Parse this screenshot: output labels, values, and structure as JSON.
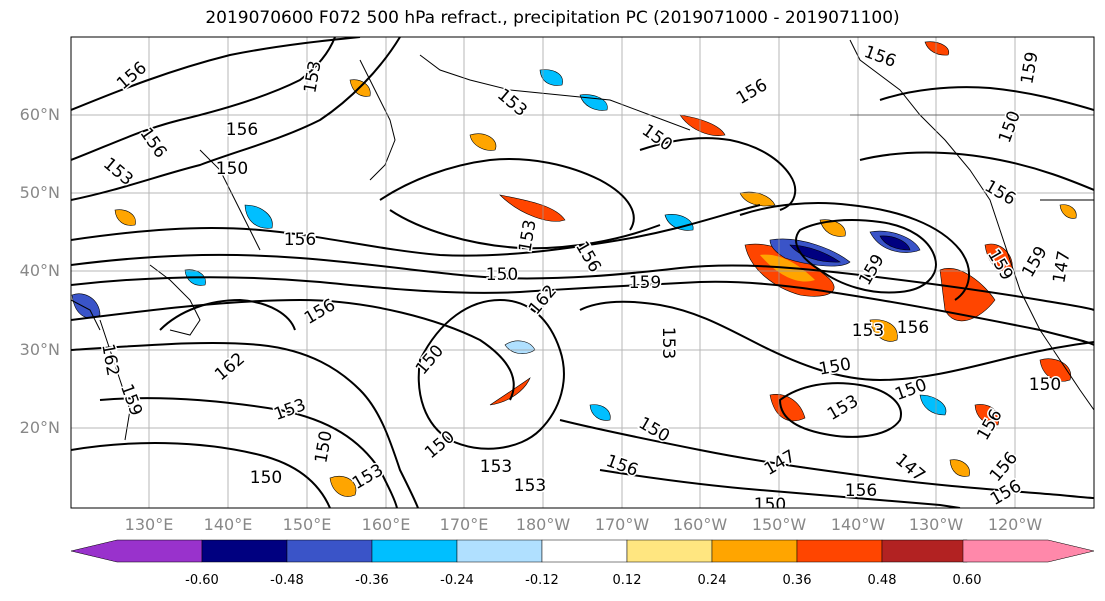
{
  "title": "2019070600 F072 500 hPa refract., precipitation PC (2019071000 - 2019071100)",
  "lat_labels": [
    "60°N",
    "50°N",
    "40°N",
    "30°N",
    "20°N"
  ],
  "lon_labels": [
    "130°E",
    "140°E",
    "150°E",
    "160°E",
    "170°E",
    "180°W",
    "170°W",
    "160°W",
    "150°W",
    "140°W",
    "130°W",
    "120°W"
  ],
  "colorbar": {
    "colors": [
      "#9932cc",
      "#000080",
      "#3a54c8",
      "#00bfff",
      "#b0e0ff",
      "#ffffff",
      "#ffe680",
      "#ffa500",
      "#ff4500",
      "#b22222",
      "#ff88aa"
    ],
    "tick_labels": [
      "-0.60",
      "-0.48",
      "-0.36",
      "-0.24",
      "-0.12",
      "0.12",
      "0.24",
      "0.36",
      "0.48",
      "0.60"
    ]
  },
  "contour_labels": [
    "156",
    "153",
    "156",
    "156",
    "153",
    "150",
    "153",
    "156",
    "150",
    "150",
    "156",
    "159",
    "156",
    "150",
    "159",
    "153",
    "156",
    "153",
    "162",
    "159",
    "159",
    "153",
    "156",
    "162",
    "156",
    "162",
    "159",
    "150",
    "150",
    "153",
    "150",
    "153",
    "150",
    "153",
    "150",
    "156",
    "153",
    "150",
    "150",
    "147",
    "156",
    "153",
    "147",
    "156",
    "156",
    "156",
    "150",
    "147",
    "159",
    "156",
    "150"
  ]
}
